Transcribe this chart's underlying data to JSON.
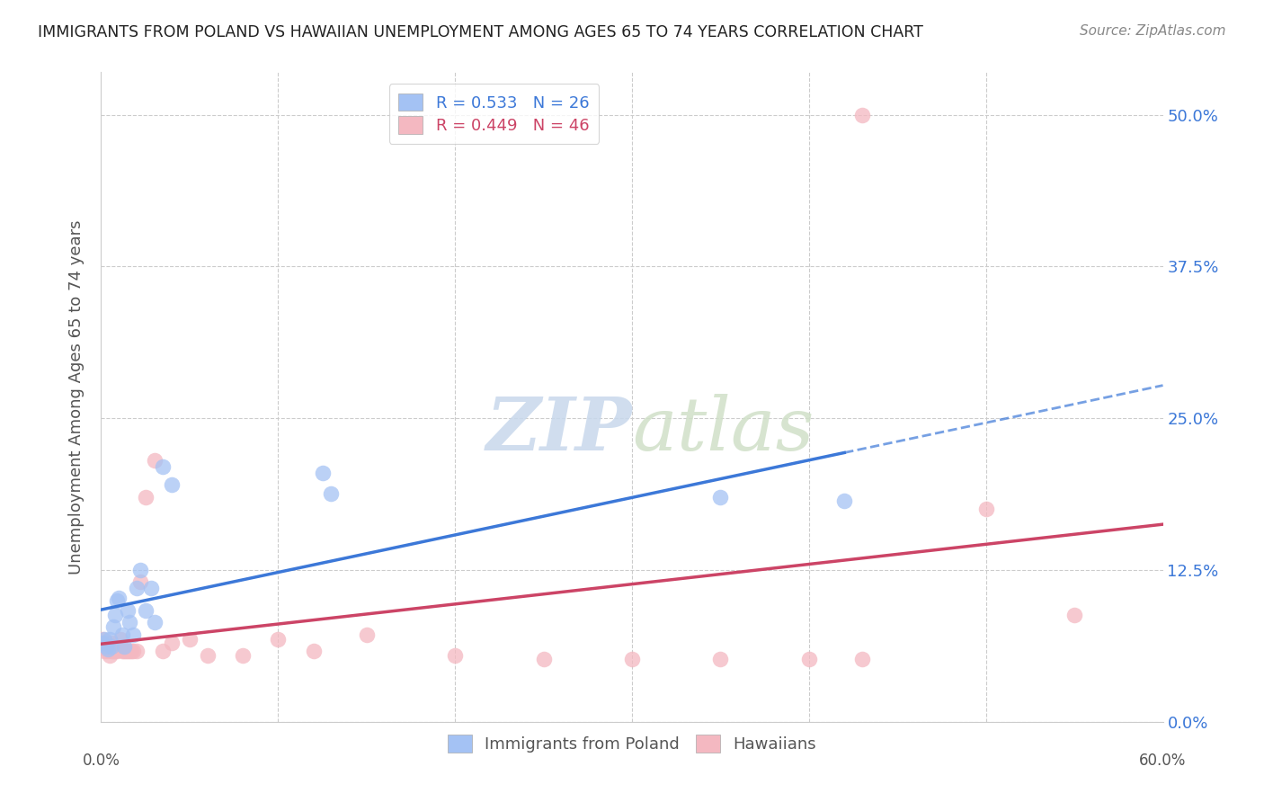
{
  "title": "IMMIGRANTS FROM POLAND VS HAWAIIAN UNEMPLOYMENT AMONG AGES 65 TO 74 YEARS CORRELATION CHART",
  "source": "Source: ZipAtlas.com",
  "ylabel": "Unemployment Among Ages 65 to 74 years",
  "ytick_labels": [
    "0.0%",
    "12.5%",
    "25.0%",
    "37.5%",
    "50.0%"
  ],
  "ytick_values": [
    0.0,
    0.125,
    0.25,
    0.375,
    0.5
  ],
  "xlim": [
    0.0,
    0.6
  ],
  "ylim": [
    0.0,
    0.535
  ],
  "color_poland": "#a4c2f4",
  "color_hawaii": "#f4b8c1",
  "color_line_poland": "#3c78d8",
  "color_line_hawaii": "#cc4466",
  "legend_label_poland": "R = 0.533   N = 26",
  "legend_label_hawaii": "R = 0.449   N = 46",
  "bottom_label_poland": "Immigrants from Poland",
  "bottom_label_hawaii": "Hawaiians",
  "poland_x": [
    0.001,
    0.002,
    0.003,
    0.004,
    0.005,
    0.006,
    0.007,
    0.008,
    0.009,
    0.01,
    0.012,
    0.013,
    0.015,
    0.016,
    0.018,
    0.02,
    0.022,
    0.025,
    0.028,
    0.03,
    0.035,
    0.04,
    0.125,
    0.13,
    0.35,
    0.42
  ],
  "poland_y": [
    0.065,
    0.068,
    0.062,
    0.06,
    0.068,
    0.062,
    0.078,
    0.088,
    0.1,
    0.102,
    0.072,
    0.062,
    0.092,
    0.082,
    0.072,
    0.11,
    0.125,
    0.092,
    0.11,
    0.082,
    0.21,
    0.195,
    0.205,
    0.188,
    0.185,
    0.182
  ],
  "hawaii_x": [
    0.001,
    0.001,
    0.002,
    0.002,
    0.003,
    0.003,
    0.004,
    0.004,
    0.005,
    0.005,
    0.006,
    0.006,
    0.007,
    0.007,
    0.008,
    0.009,
    0.01,
    0.011,
    0.012,
    0.013,
    0.014,
    0.015,
    0.016,
    0.017,
    0.018,
    0.02,
    0.022,
    0.025,
    0.03,
    0.035,
    0.04,
    0.05,
    0.06,
    0.08,
    0.1,
    0.12,
    0.15,
    0.2,
    0.25,
    0.3,
    0.35,
    0.4,
    0.43,
    0.5,
    0.55,
    0.43
  ],
  "hawaii_y": [
    0.062,
    0.068,
    0.058,
    0.065,
    0.062,
    0.065,
    0.058,
    0.062,
    0.055,
    0.062,
    0.058,
    0.065,
    0.058,
    0.062,
    0.058,
    0.058,
    0.062,
    0.068,
    0.058,
    0.058,
    0.058,
    0.058,
    0.058,
    0.058,
    0.058,
    0.058,
    0.115,
    0.185,
    0.215,
    0.058,
    0.065,
    0.068,
    0.055,
    0.055,
    0.068,
    0.058,
    0.072,
    0.055,
    0.052,
    0.052,
    0.052,
    0.052,
    0.052,
    0.175,
    0.088,
    0.5
  ]
}
